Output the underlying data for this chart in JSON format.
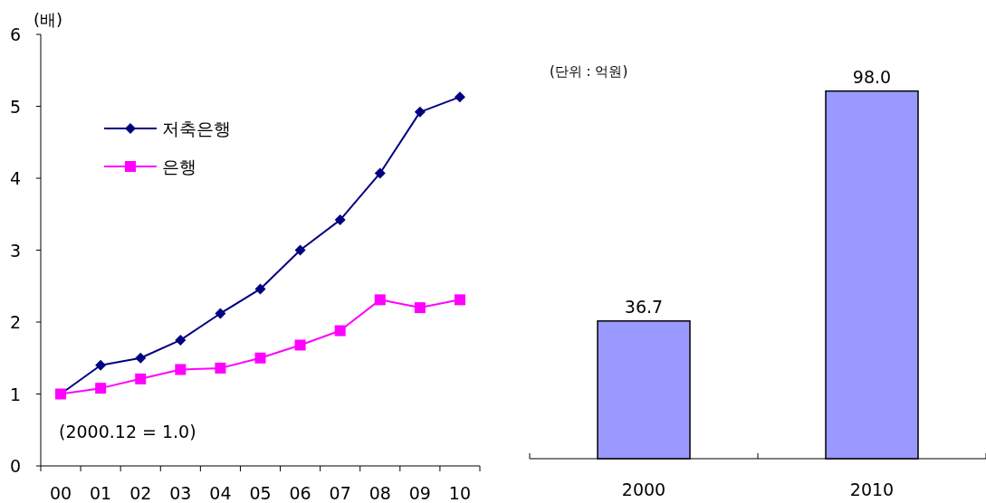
{
  "chart_data": [
    {
      "type": "line",
      "ylabel": "(배)",
      "categories": [
        "00",
        "01",
        "02",
        "03",
        "04",
        "05",
        "06",
        "07",
        "08",
        "09",
        "10"
      ],
      "ylim": [
        0,
        6
      ],
      "yticks": [
        0,
        1,
        2,
        3,
        4,
        5,
        6
      ],
      "legend": "top left",
      "series": [
        {
          "name": "저축은행",
          "color": "#000080",
          "marker": "diamond",
          "values": [
            1.0,
            1.4,
            1.5,
            1.75,
            2.12,
            2.46,
            3.0,
            3.42,
            4.07,
            4.92,
            5.13
          ]
        },
        {
          "name": "은행",
          "color": "#ff00ff",
          "marker": "square",
          "values": [
            1.0,
            1.08,
            1.21,
            1.34,
            1.36,
            1.5,
            1.68,
            1.88,
            2.31,
            2.2,
            2.31
          ]
        }
      ],
      "annotations": [
        "(2000.12 = 1.0)"
      ]
    },
    {
      "type": "bar",
      "categories": [
        "2000",
        "2010"
      ],
      "values": [
        36.7,
        98.0
      ],
      "value_labels": [
        "36.7",
        "98.0"
      ],
      "color": "#9999ff",
      "annotations": [
        "(단위 : 억원)"
      ]
    }
  ]
}
